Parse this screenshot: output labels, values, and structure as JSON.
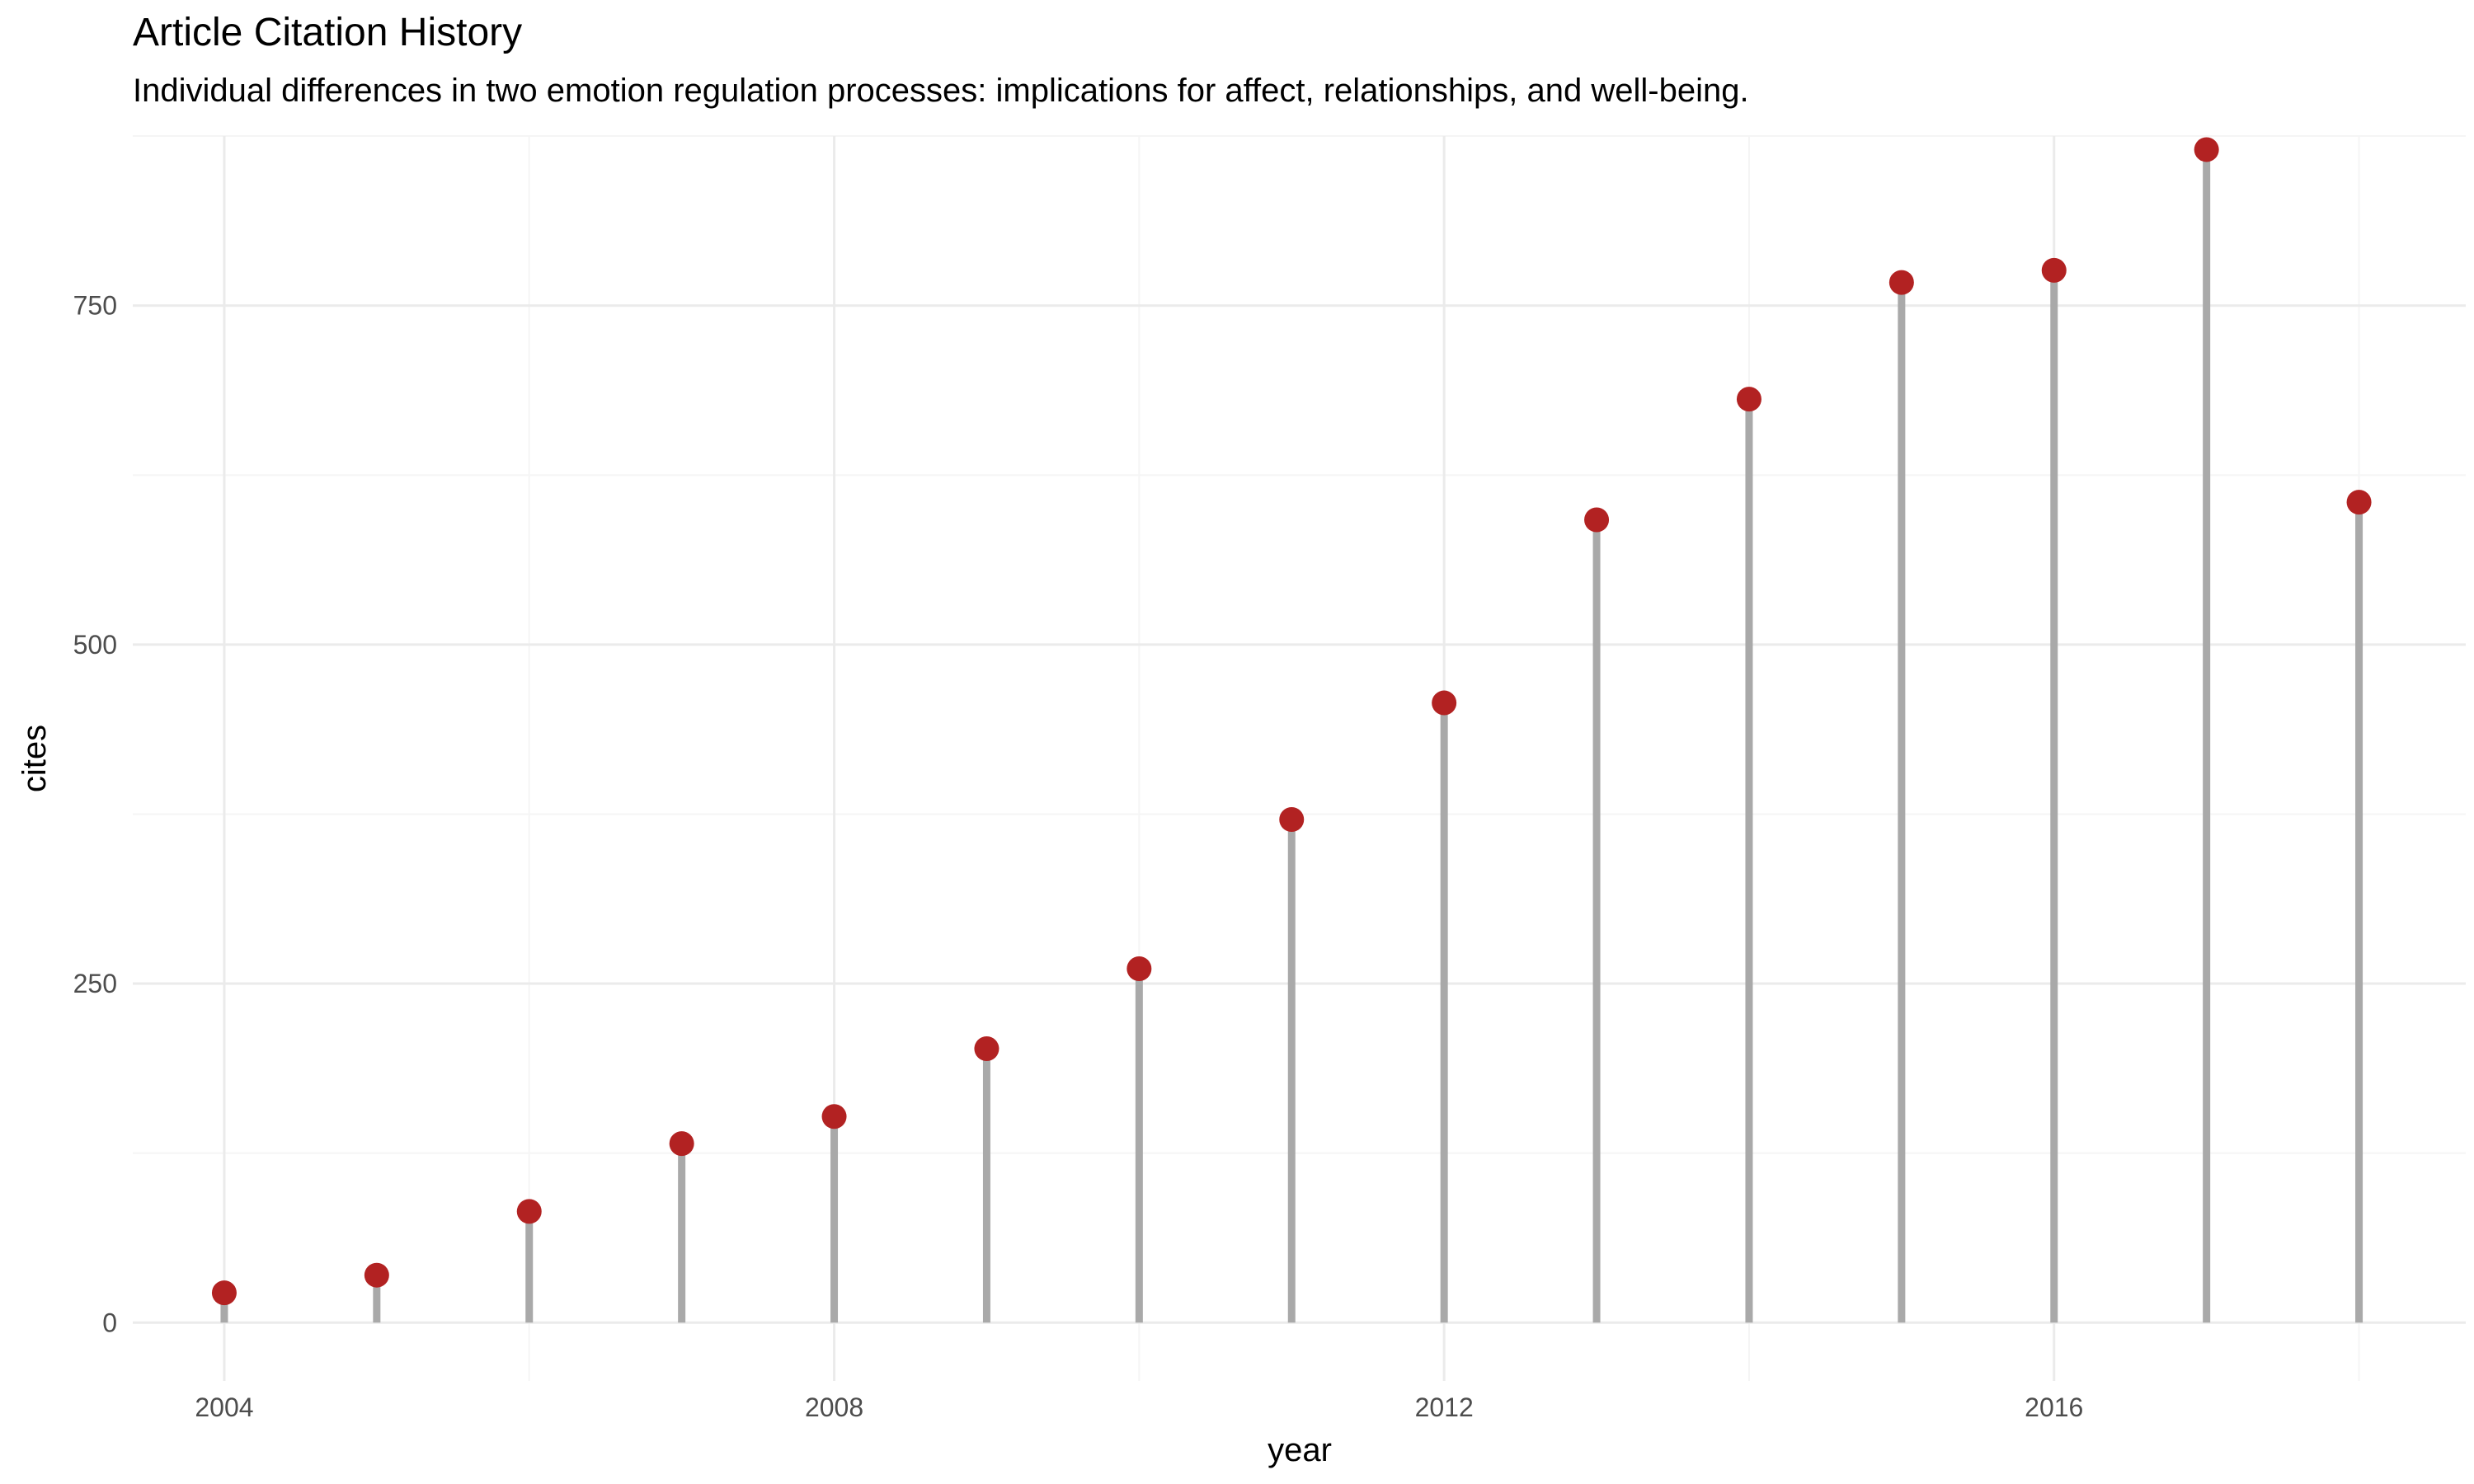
{
  "chart_data": {
    "type": "lollipop",
    "title": "Article Citation History",
    "subtitle": "Individual differences in two emotion regulation processes: implications for affect, relationships, and well-being.",
    "xlabel": "year",
    "ylabel": "cites",
    "x": [
      2004,
      2005,
      2006,
      2007,
      2008,
      2009,
      2010,
      2011,
      2012,
      2013,
      2014,
      2015,
      2016,
      2017,
      2018
    ],
    "values": [
      22,
      35,
      82,
      132,
      152,
      202,
      261,
      371,
      457,
      592,
      681,
      767,
      776,
      865,
      605
    ],
    "xlim": [
      2003.4,
      2018.7
    ],
    "ylim": [
      -43,
      875
    ],
    "x_ticks": [
      "2004",
      "2008",
      "2012",
      "2016"
    ],
    "y_ticks": [
      "0",
      "250",
      "500",
      "750"
    ],
    "grid": true,
    "legend": "none",
    "colors": {
      "point": "#b22222",
      "stem": "#a9a9a9",
      "grid_major": "#ebebeb",
      "grid_minor": "#f5f5f5"
    }
  }
}
